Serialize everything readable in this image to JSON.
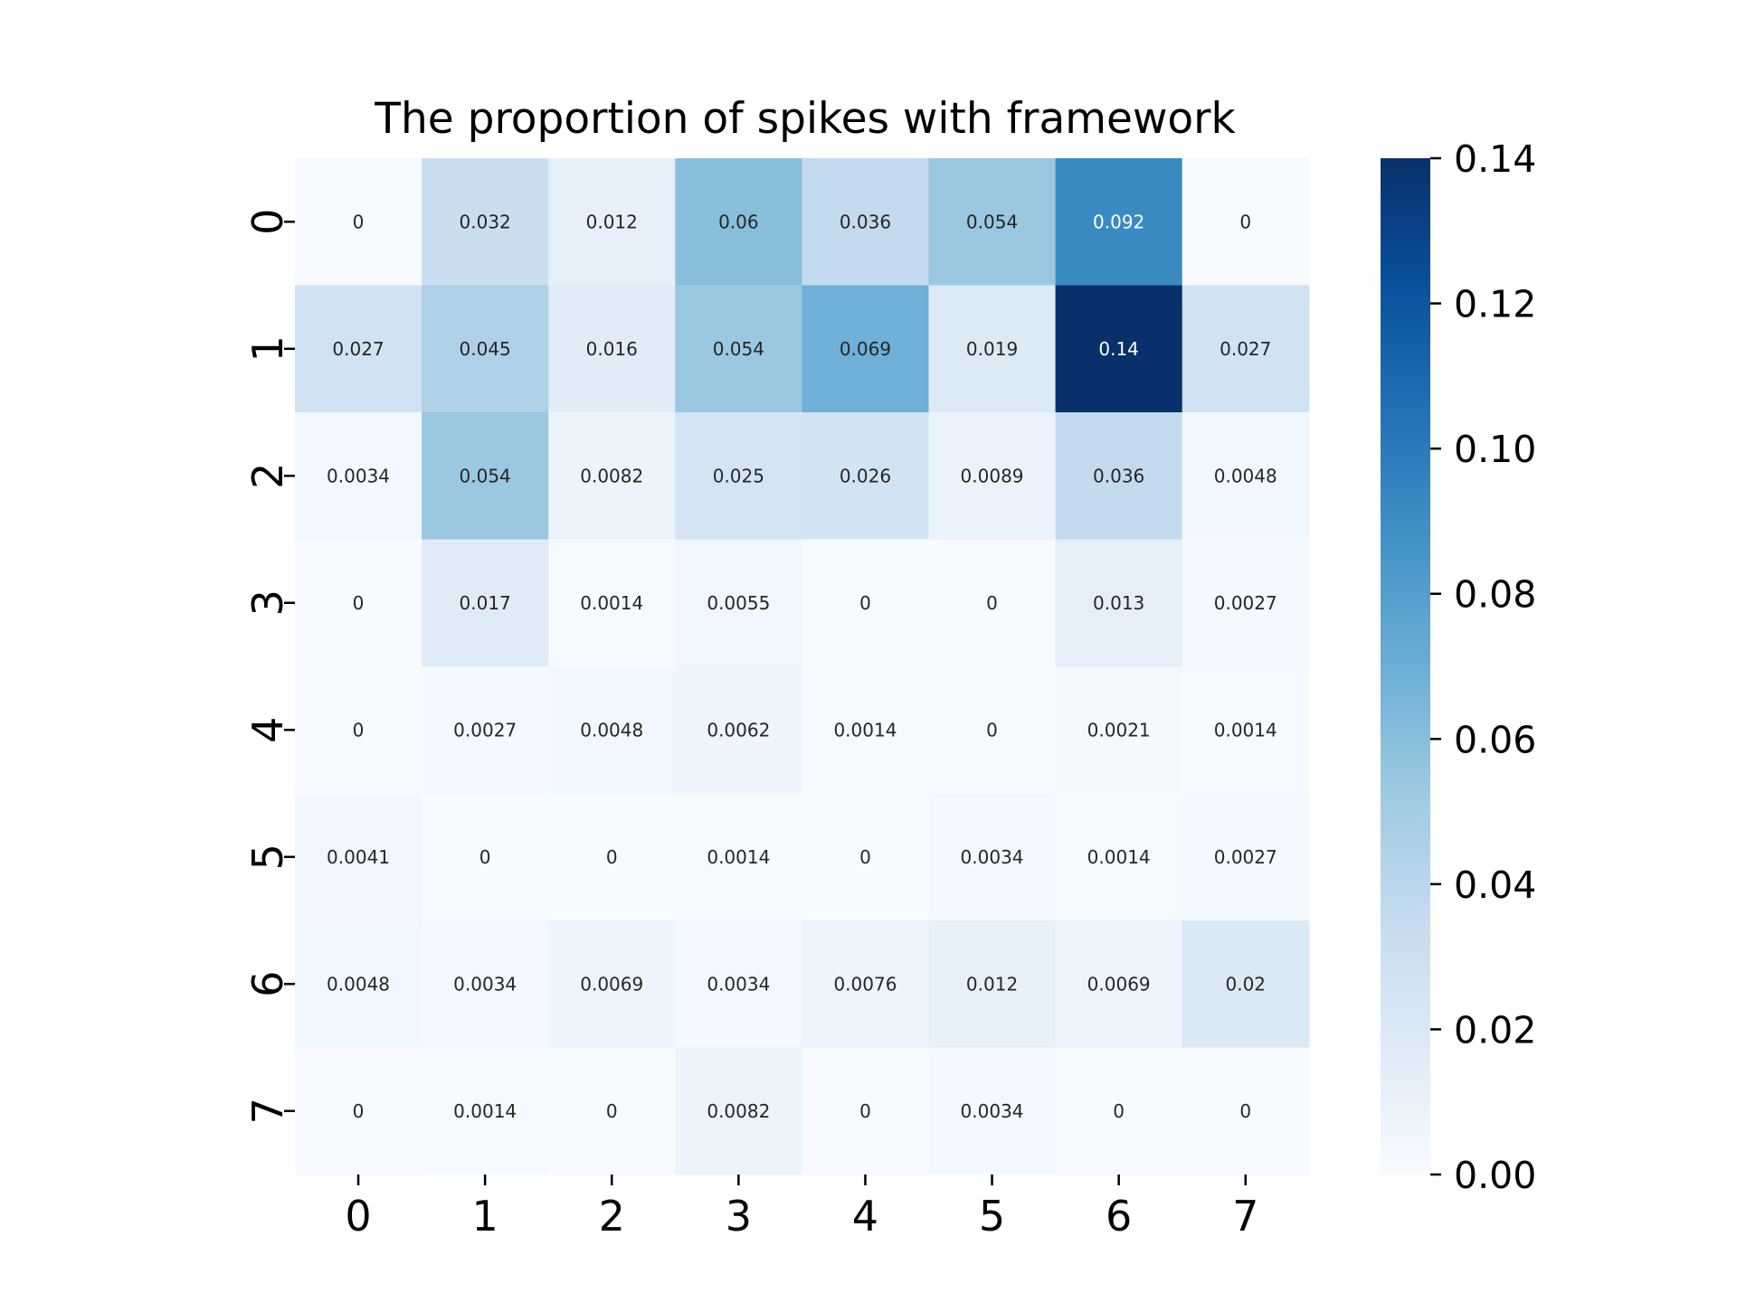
{
  "chart_data": {
    "type": "heatmap",
    "title": "The proportion of spikes with framework",
    "xlabel": "",
    "ylabel": "",
    "x_categories": [
      "0",
      "1",
      "2",
      "3",
      "4",
      "5",
      "6",
      "7"
    ],
    "y_categories": [
      "0",
      "1",
      "2",
      "3",
      "4",
      "5",
      "6",
      "7"
    ],
    "values": [
      [
        0,
        0.032,
        0.012,
        0.06,
        0.036,
        0.054,
        0.092,
        0
      ],
      [
        0.027,
        0.045,
        0.016,
        0.054,
        0.069,
        0.019,
        0.14,
        0.027
      ],
      [
        0.0034,
        0.054,
        0.0082,
        0.025,
        0.026,
        0.0089,
        0.036,
        0.0048
      ],
      [
        0,
        0.017,
        0.0014,
        0.0055,
        0,
        0,
        0.013,
        0.0027
      ],
      [
        0,
        0.0027,
        0.0048,
        0.0062,
        0.0014,
        0,
        0.0021,
        0.0014
      ],
      [
        0.0041,
        0,
        0,
        0.0014,
        0,
        0.0034,
        0.0014,
        0.0027
      ],
      [
        0.0048,
        0.0034,
        0.0069,
        0.0034,
        0.0076,
        0.012,
        0.0069,
        0.02
      ],
      [
        0,
        0.0014,
        0,
        0.0082,
        0,
        0.0034,
        0,
        0
      ]
    ],
    "colormap": "Blues",
    "vmin": 0,
    "vmax": 0.14,
    "colorbar_ticks": [
      0,
      0.02,
      0.04,
      0.06,
      0.08,
      0.1,
      0.12,
      0.14
    ],
    "colorbar_tick_labels": [
      "0.00",
      "0.02",
      "0.04",
      "0.06",
      "0.08",
      "0.10",
      "0.12",
      "0.14"
    ],
    "grid": false,
    "colors": {
      "blues_stops": [
        "#f7fbff",
        "#deebf7",
        "#c6dbef",
        "#9ecae1",
        "#6baed6",
        "#4292c6",
        "#2171b5",
        "#08519c",
        "#08306b"
      ],
      "annotation_dark": "#262626",
      "annotation_light": "#ffffff"
    }
  }
}
